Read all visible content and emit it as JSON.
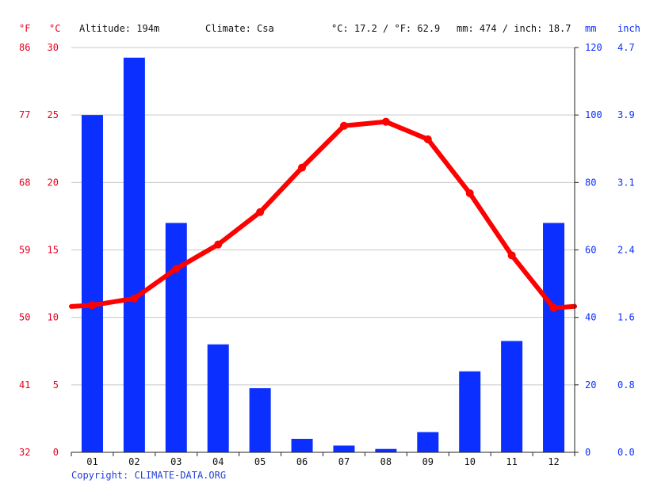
{
  "header": {
    "unit_f": "°F",
    "unit_c": "°C",
    "altitude": "Altitude: 194m",
    "climate": "Climate: Csa",
    "avg_temp": "°C: 17.2 / °F: 62.9",
    "precip_total": "mm: 474 / inch: 18.7",
    "unit_mm": "mm",
    "unit_inch": "inch"
  },
  "footer": {
    "copyright": "Copyright: CLIMATE-DATA.ORG"
  },
  "colors": {
    "temperature": "#ff0000",
    "precipitation": "#0a2fff",
    "axis_red": "#e6001f",
    "axis_blue": "#0a2fff"
  },
  "chart_data": {
    "type": "bar+line",
    "categories": [
      "01",
      "02",
      "03",
      "04",
      "05",
      "06",
      "07",
      "08",
      "09",
      "10",
      "11",
      "12"
    ],
    "series": [
      {
        "axis": "right-mm",
        "type": "bar",
        "values": [
          100,
          117,
          68,
          32,
          19,
          4,
          2,
          1,
          6,
          24,
          33,
          68
        ]
      },
      {
        "axis": "left-celsius",
        "type": "line",
        "values": [
          10.9,
          11.4,
          13.6,
          15.4,
          17.8,
          21.1,
          24.2,
          24.5,
          23.2,
          19.2,
          14.6,
          10.7
        ]
      }
    ],
    "left_celsius_ticks": [
      "30",
      "25",
      "20",
      "15",
      "10",
      "5",
      "0"
    ],
    "left_fahrenheit_ticks": [
      "86",
      "77",
      "68",
      "59",
      "50",
      "41",
      "32"
    ],
    "right_mm_ticks": [
      "120",
      "100",
      "80",
      "60",
      "40",
      "20",
      "0"
    ],
    "right_inch_ticks": [
      "4.7",
      "3.9",
      "3.1",
      "2.4",
      "1.6",
      "0.8",
      "0.0"
    ],
    "celsius_range": [
      0,
      30
    ],
    "mm_range": [
      0,
      120
    ],
    "grid": true
  }
}
